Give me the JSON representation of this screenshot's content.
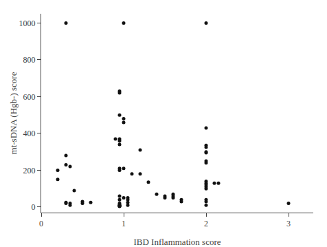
{
  "chart_data": {
    "type": "scatter",
    "x": [
      0.2,
      0.2,
      0.3,
      0.3,
      0.3,
      0.3,
      0.3,
      0.35,
      0.35,
      0.35,
      0.4,
      0.5,
      0.5,
      0.6,
      0.9,
      0.95,
      0.95,
      0.95,
      0.95,
      0.95,
      0.95,
      0.95,
      0.95,
      0.95,
      0.95,
      0.95,
      0.95,
      0.95,
      0.95,
      0.95,
      0.95,
      0.95,
      1.0,
      1.0,
      1.0,
      1.0,
      1.0,
      1.05,
      1.05,
      1.05,
      1.05,
      1.1,
      1.2,
      1.2,
      1.3,
      1.4,
      1.5,
      1.5,
      1.6,
      1.6,
      1.6,
      1.7,
      1.7,
      2.0,
      2.0,
      2.0,
      2.0,
      2.0,
      2.0,
      2.0,
      2.0,
      2.0,
      2.0,
      2.0,
      2.0,
      2.0,
      2.0,
      2.0,
      2.0,
      2.1,
      2.15,
      3.0
    ],
    "values": [
      200,
      150,
      1000,
      280,
      230,
      25,
      20,
      220,
      20,
      10,
      90,
      30,
      20,
      25,
      370,
      630,
      620,
      500,
      370,
      360,
      340,
      210,
      200,
      60,
      40,
      20,
      10,
      10,
      10,
      5,
      5,
      5,
      1000,
      480,
      460,
      210,
      50,
      50,
      40,
      25,
      10,
      180,
      310,
      180,
      135,
      70,
      60,
      50,
      70,
      60,
      50,
      40,
      30,
      1000,
      430,
      335,
      325,
      300,
      295,
      250,
      240,
      140,
      130,
      120,
      110,
      100,
      40,
      30,
      10,
      130,
      130,
      20
    ],
    "xlabel": "IBD Inflammation score",
    "ylabel": "mt-sDNA (Hgb-) score",
    "xlim": [
      0,
      3.3
    ],
    "ylim": [
      -30,
      1050
    ],
    "xticks": [
      0,
      1,
      2,
      3
    ],
    "yticks": [
      0,
      200,
      400,
      600,
      800,
      1000
    ],
    "color": "#111111",
    "grid": false
  }
}
